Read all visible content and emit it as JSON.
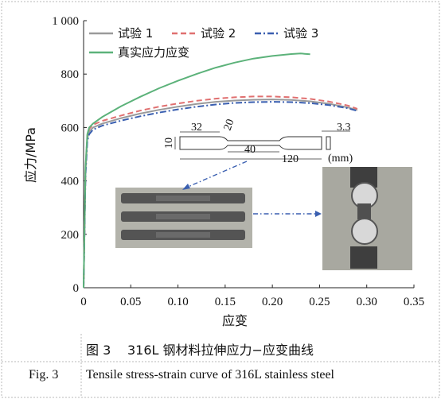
{
  "chart_data": {
    "type": "line",
    "title": "",
    "xlabel": "应变",
    "ylabel": "应力/MPa",
    "xlim": [
      0,
      0.35
    ],
    "ylim": [
      0,
      1000
    ],
    "x_ticks": [
      "0",
      "0.05",
      "0.10",
      "0.15",
      "0.20",
      "0.25",
      "0.30",
      "0.35"
    ],
    "y_ticks": [
      "0",
      "200",
      "400",
      "600",
      "800",
      "1 000"
    ],
    "legend_position": "top-left",
    "series": [
      {
        "name": "试验 1",
        "color": "#9a9a9a",
        "style": "solid",
        "x": [
          0,
          0.002,
          0.004,
          0.006,
          0.01,
          0.02,
          0.04,
          0.06,
          0.08,
          0.1,
          0.12,
          0.14,
          0.16,
          0.18,
          0.2,
          0.22,
          0.24,
          0.26,
          0.28,
          0.29
        ],
        "y": [
          0,
          430,
          560,
          585,
          600,
          615,
          635,
          652,
          666,
          678,
          688,
          696,
          701,
          704,
          705,
          703,
          698,
          689,
          675,
          665
        ]
      },
      {
        "name": "试验 2",
        "color": "#e07070",
        "style": "dash",
        "x": [
          0,
          0.002,
          0.004,
          0.006,
          0.01,
          0.02,
          0.04,
          0.06,
          0.08,
          0.1,
          0.12,
          0.14,
          0.16,
          0.18,
          0.2,
          0.22,
          0.24,
          0.26,
          0.28,
          0.29
        ],
        "y": [
          0,
          440,
          570,
          595,
          610,
          625,
          645,
          663,
          678,
          690,
          700,
          708,
          713,
          716,
          716,
          713,
          707,
          697,
          682,
          670
        ]
      },
      {
        "name": "试验 3",
        "color": "#3a5fb0",
        "style": "dashdot",
        "x": [
          0,
          0.002,
          0.004,
          0.006,
          0.01,
          0.02,
          0.04,
          0.06,
          0.08,
          0.1,
          0.12,
          0.14,
          0.16,
          0.18,
          0.2,
          0.22,
          0.24,
          0.26,
          0.28,
          0.29
        ],
        "y": [
          0,
          420,
          550,
          575,
          592,
          607,
          626,
          642,
          656,
          668,
          678,
          686,
          692,
          695,
          696,
          695,
          691,
          684,
          672,
          662
        ]
      },
      {
        "name": "真实应力应变",
        "color": "#5cb27a",
        "style": "solid",
        "x": [
          0,
          0.002,
          0.004,
          0.006,
          0.01,
          0.02,
          0.04,
          0.06,
          0.08,
          0.1,
          0.12,
          0.14,
          0.16,
          0.18,
          0.2,
          0.22,
          0.23,
          0.24
        ],
        "y": [
          0,
          450,
          575,
          600,
          615,
          640,
          680,
          715,
          747,
          775,
          801,
          824,
          843,
          858,
          868,
          875,
          877,
          874
        ]
      }
    ]
  },
  "specimen": {
    "dims": [
      "32",
      "20",
      "10",
      "40",
      "120",
      "3.3"
    ],
    "unit": "(mm)"
  },
  "caption": {
    "zh_prefix": "图 3",
    "zh_text": "316L 钢材料拉伸应力−应变曲线",
    "en_prefix": "Fig. 3",
    "en_text": "Tensile stress-strain curve of 316L  stainless steel"
  }
}
